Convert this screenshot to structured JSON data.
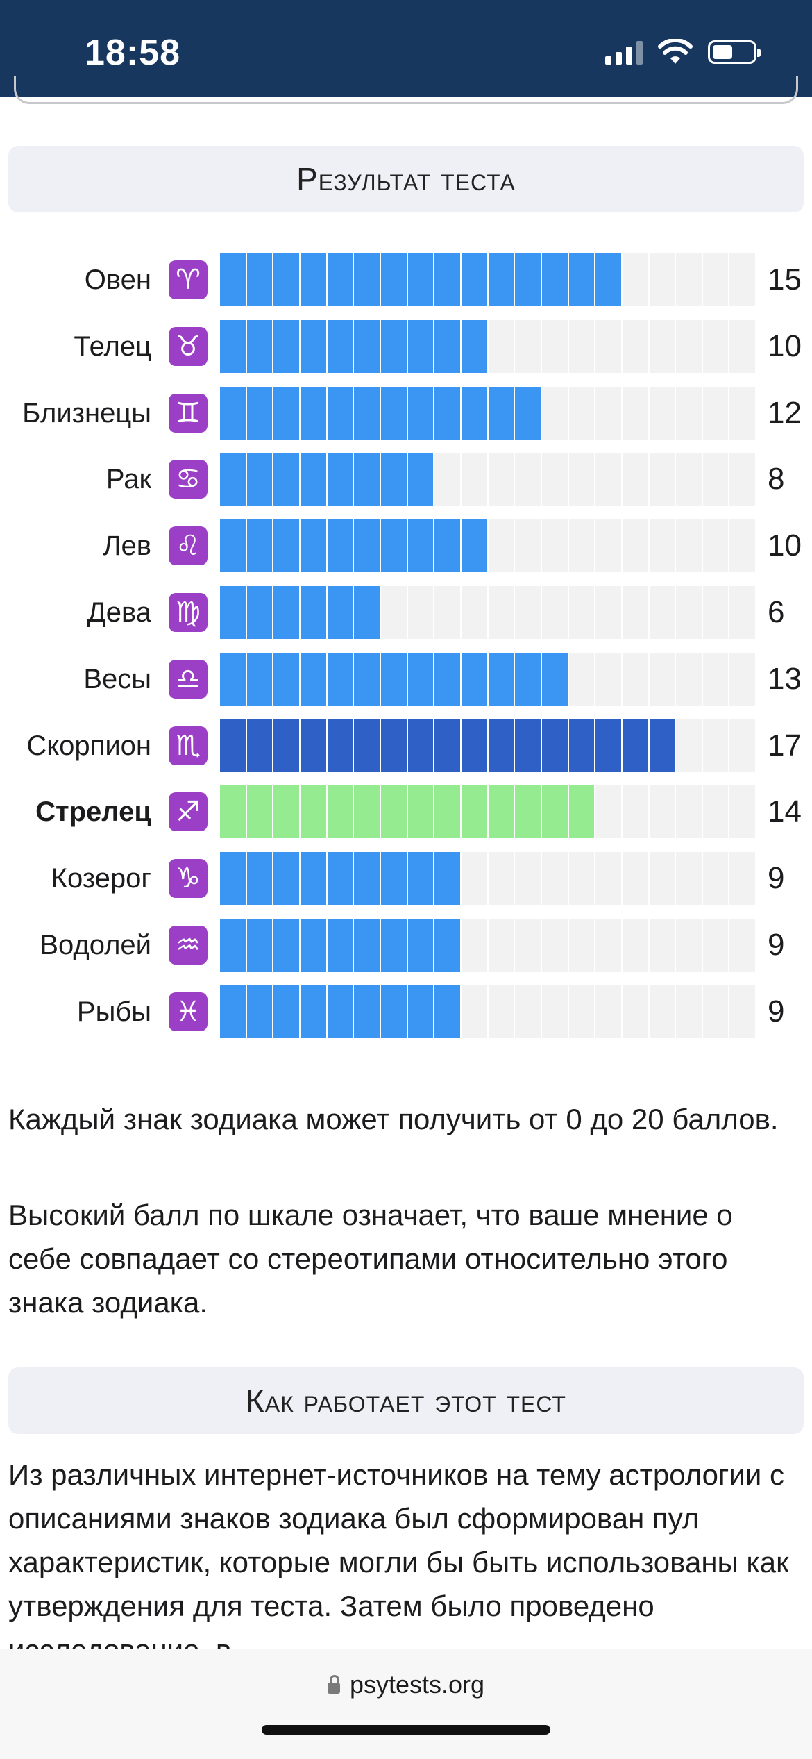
{
  "status_bar": {
    "time": "18:58"
  },
  "result_section": {
    "title": "Результат теста"
  },
  "chart_data": {
    "type": "bar",
    "orientation": "horizontal",
    "categories": [
      "Овен",
      "Телец",
      "Близнецы",
      "Рак",
      "Лев",
      "Дева",
      "Весы",
      "Скорпион",
      "Стрелец",
      "Козерог",
      "Водолей",
      "Рыбы"
    ],
    "symbols": [
      "♈",
      "♉",
      "♊",
      "♋",
      "♌",
      "♍",
      "♎",
      "♏",
      "♐",
      "♑",
      "♒",
      "♓"
    ],
    "values": [
      15,
      10,
      12,
      8,
      10,
      6,
      13,
      17,
      14,
      9,
      9,
      9
    ],
    "xlim": [
      0,
      20
    ],
    "highlight_max_index": 7,
    "own_sign_index": 8,
    "colors": {
      "default": "#3b96f3",
      "max": "#2e60c6",
      "own_sign": "#94eb90",
      "empty": "#f2f2f3",
      "sign_badge": "#9b3fc7"
    }
  },
  "text": {
    "p1": "Каждый знак зодиака может получить от 0 до 20 баллов.",
    "p2": "Высокий балл по шкале означает, что ваше мнение о себе совпадает со стереотипами относительно этого знака зодиака.",
    "p3": "Из различных интернет-источников на тему астрологии с описаниями знаков зодиака был сформирован пул характеристик, которые могли бы быть использованы как утверждения для теста. Затем было проведено исследование, в"
  },
  "how_section": {
    "title": "Как работает этот тест"
  },
  "browser": {
    "url": "psytests.org"
  }
}
